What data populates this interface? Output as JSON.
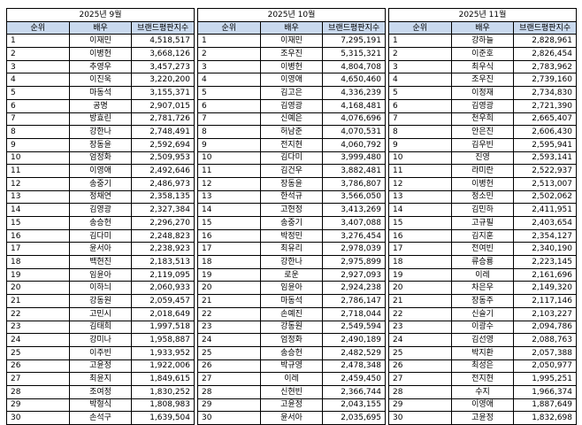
{
  "panels": [
    {
      "title": "2025년 9월",
      "headers": {
        "rank": "순위",
        "actor": "배우",
        "index": "브랜드평판지수"
      },
      "rows": [
        {
          "rank": "1",
          "name": "이재민",
          "score": "4,518,517"
        },
        {
          "rank": "2",
          "name": "이병헌",
          "score": "3,668,126"
        },
        {
          "rank": "3",
          "name": "추영우",
          "score": "3,457,273"
        },
        {
          "rank": "4",
          "name": "이진욱",
          "score": "3,220,200"
        },
        {
          "rank": "5",
          "name": "마동석",
          "score": "3,155,371"
        },
        {
          "rank": "6",
          "name": "공명",
          "score": "2,907,015"
        },
        {
          "rank": "7",
          "name": "방효린",
          "score": "2,781,726"
        },
        {
          "rank": "8",
          "name": "강한나",
          "score": "2,748,491"
        },
        {
          "rank": "9",
          "name": "장동윤",
          "score": "2,592,694"
        },
        {
          "rank": "10",
          "name": "엄정화",
          "score": "2,509,953"
        },
        {
          "rank": "11",
          "name": "이영애",
          "score": "2,492,646"
        },
        {
          "rank": "12",
          "name": "송중기",
          "score": "2,486,973"
        },
        {
          "rank": "13",
          "name": "정채연",
          "score": "2,358,135"
        },
        {
          "rank": "14",
          "name": "김영광",
          "score": "2,327,384"
        },
        {
          "rank": "15",
          "name": "송승헌",
          "score": "2,296,270"
        },
        {
          "rank": "16",
          "name": "김다미",
          "score": "2,248,823"
        },
        {
          "rank": "17",
          "name": "윤서아",
          "score": "2,238,923"
        },
        {
          "rank": "18",
          "name": "백현진",
          "score": "2,183,513"
        },
        {
          "rank": "19",
          "name": "임윤아",
          "score": "2,119,095"
        },
        {
          "rank": "20",
          "name": "이하늬",
          "score": "2,060,933"
        },
        {
          "rank": "21",
          "name": "강동원",
          "score": "2,059,457"
        },
        {
          "rank": "22",
          "name": "고민시",
          "score": "2,018,649"
        },
        {
          "rank": "23",
          "name": "김태희",
          "score": "1,997,518"
        },
        {
          "rank": "24",
          "name": "강미나",
          "score": "1,958,887"
        },
        {
          "rank": "25",
          "name": "이주빈",
          "score": "1,933,952"
        },
        {
          "rank": "26",
          "name": "고윤정",
          "score": "1,922,006"
        },
        {
          "rank": "27",
          "name": "최윤지",
          "score": "1,849,615"
        },
        {
          "rank": "28",
          "name": "조여정",
          "score": "1,830,252"
        },
        {
          "rank": "29",
          "name": "박형식",
          "score": "1,808,983"
        },
        {
          "rank": "30",
          "name": "손석구",
          "score": "1,639,504"
        }
      ]
    },
    {
      "title": "2025년 10월",
      "headers": {
        "rank": "순위",
        "actor": "배우",
        "index": "브랜드평판지수"
      },
      "rows": [
        {
          "rank": "1",
          "name": "이재민",
          "score": "7,295,191"
        },
        {
          "rank": "2",
          "name": "조우진",
          "score": "5,315,321"
        },
        {
          "rank": "3",
          "name": "이병헌",
          "score": "4,804,708"
        },
        {
          "rank": "4",
          "name": "이영애",
          "score": "4,650,460"
        },
        {
          "rank": "5",
          "name": "김고은",
          "score": "4,336,239"
        },
        {
          "rank": "6",
          "name": "김영광",
          "score": "4,168,481"
        },
        {
          "rank": "7",
          "name": "신예은",
          "score": "4,076,696"
        },
        {
          "rank": "8",
          "name": "허남준",
          "score": "4,070,531"
        },
        {
          "rank": "9",
          "name": "전지현",
          "score": "4,060,792"
        },
        {
          "rank": "10",
          "name": "김다미",
          "score": "3,999,480"
        },
        {
          "rank": "11",
          "name": "김건우",
          "score": "3,882,481"
        },
        {
          "rank": "12",
          "name": "장동윤",
          "score": "3,786,807"
        },
        {
          "rank": "13",
          "name": "한석규",
          "score": "3,566,050"
        },
        {
          "rank": "14",
          "name": "고현정",
          "score": "3,413,269"
        },
        {
          "rank": "15",
          "name": "송중기",
          "score": "3,407,088"
        },
        {
          "rank": "16",
          "name": "박정민",
          "score": "3,276,454"
        },
        {
          "rank": "17",
          "name": "최유리",
          "score": "2,978,039"
        },
        {
          "rank": "18",
          "name": "강한나",
          "score": "2,975,899"
        },
        {
          "rank": "19",
          "name": "로운",
          "score": "2,927,093"
        },
        {
          "rank": "20",
          "name": "임윤아",
          "score": "2,924,238"
        },
        {
          "rank": "21",
          "name": "마동석",
          "score": "2,786,147"
        },
        {
          "rank": "22",
          "name": "손예진",
          "score": "2,718,044"
        },
        {
          "rank": "23",
          "name": "강동원",
          "score": "2,549,594"
        },
        {
          "rank": "24",
          "name": "엄정화",
          "score": "2,490,189"
        },
        {
          "rank": "25",
          "name": "송승헌",
          "score": "2,482,529"
        },
        {
          "rank": "26",
          "name": "박규영",
          "score": "2,478,348"
        },
        {
          "rank": "27",
          "name": "이레",
          "score": "2,459,450"
        },
        {
          "rank": "28",
          "name": "신현빈",
          "score": "2,366,744"
        },
        {
          "rank": "29",
          "name": "고윤정",
          "score": "2,043,155"
        },
        {
          "rank": "30",
          "name": "윤서아",
          "score": "2,035,695"
        }
      ]
    },
    {
      "title": "2025년 11월",
      "headers": {
        "rank": "순위",
        "actor": "배우",
        "index": "브랜드평판지수"
      },
      "rows": [
        {
          "rank": "1",
          "name": "강하늘",
          "score": "2,828,961"
        },
        {
          "rank": "2",
          "name": "이준호",
          "score": "2,826,454"
        },
        {
          "rank": "3",
          "name": "최우식",
          "score": "2,783,962"
        },
        {
          "rank": "4",
          "name": "조우진",
          "score": "2,739,160"
        },
        {
          "rank": "5",
          "name": "이정재",
          "score": "2,734,830"
        },
        {
          "rank": "6",
          "name": "김영광",
          "score": "2,721,390"
        },
        {
          "rank": "7",
          "name": "천우희",
          "score": "2,665,407"
        },
        {
          "rank": "8",
          "name": "안은진",
          "score": "2,606,430"
        },
        {
          "rank": "9",
          "name": "김우빈",
          "score": "2,595,941"
        },
        {
          "rank": "10",
          "name": "진영",
          "score": "2,593,141"
        },
        {
          "rank": "11",
          "name": "라미란",
          "score": "2,522,937"
        },
        {
          "rank": "12",
          "name": "이병헌",
          "score": "2,513,007"
        },
        {
          "rank": "13",
          "name": "정소민",
          "score": "2,502,062"
        },
        {
          "rank": "14",
          "name": "김민하",
          "score": "2,411,951"
        },
        {
          "rank": "15",
          "name": "고규필",
          "score": "2,403,654"
        },
        {
          "rank": "16",
          "name": "김지훈",
          "score": "2,354,127"
        },
        {
          "rank": "17",
          "name": "전여빈",
          "score": "2,340,190"
        },
        {
          "rank": "18",
          "name": "류승룡",
          "score": "2,223,145"
        },
        {
          "rank": "19",
          "name": "이레",
          "score": "2,161,696"
        },
        {
          "rank": "20",
          "name": "차은우",
          "score": "2,149,320"
        },
        {
          "rank": "21",
          "name": "장동주",
          "score": "2,117,146"
        },
        {
          "rank": "22",
          "name": "신슬기",
          "score": "2,103,227"
        },
        {
          "rank": "23",
          "name": "이광수",
          "score": "2,094,786"
        },
        {
          "rank": "24",
          "name": "김선영",
          "score": "2,088,763"
        },
        {
          "rank": "25",
          "name": "박지환",
          "score": "2,057,388"
        },
        {
          "rank": "26",
          "name": "최성은",
          "score": "2,050,977"
        },
        {
          "rank": "27",
          "name": "전지현",
          "score": "1,995,251"
        },
        {
          "rank": "28",
          "name": "수지",
          "score": "1,966,374"
        },
        {
          "rank": "29",
          "name": "이영애",
          "score": "1,887,649"
        },
        {
          "rank": "30",
          "name": "고윤정",
          "score": "1,832,698"
        }
      ]
    }
  ]
}
